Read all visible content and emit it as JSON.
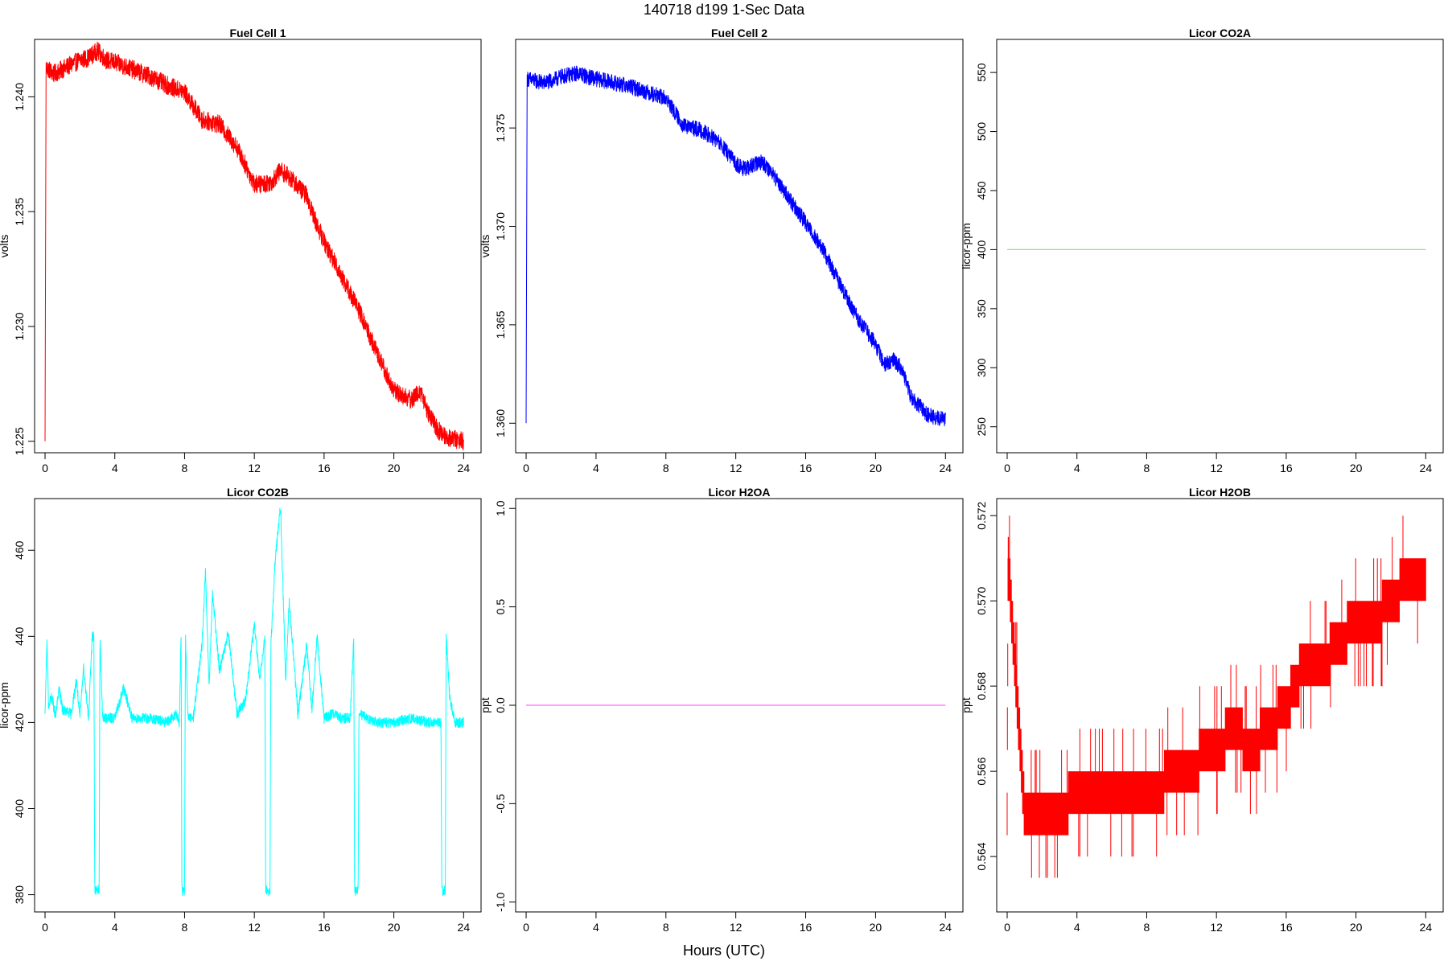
{
  "figure": {
    "title": "140718   d199   1-Sec Data",
    "xlabel": "Hours (UTC)"
  },
  "chart_data": [
    {
      "type": "line",
      "title": "Fuel Cell 1",
      "ylabel": "volts",
      "color": "#ff0000",
      "xlim": [
        -0.6,
        25.0
      ],
      "ylim": [
        1.2245,
        1.2425
      ],
      "xticks": [
        0,
        4,
        8,
        12,
        16,
        20,
        24
      ],
      "yticks": [
        1.225,
        1.23,
        1.235,
        1.24
      ],
      "ytick_labels": [
        "1.225",
        "1.230",
        "1.235",
        "1.240"
      ],
      "x": [
        0,
        0.05,
        0.5,
        1,
        1.5,
        2,
        2.5,
        3,
        3.5,
        4,
        5,
        6,
        7,
        8,
        8.5,
        9,
        10,
        11,
        12,
        12.5,
        13,
        13.5,
        14,
        15,
        15.5,
        16,
        17,
        18,
        19,
        20,
        21,
        21.5,
        22,
        22.5,
        23,
        24
      ],
      "y": [
        1.225,
        1.2413,
        1.241,
        1.2412,
        1.2414,
        1.2416,
        1.2417,
        1.242,
        1.2416,
        1.2415,
        1.2412,
        1.2409,
        1.2405,
        1.2402,
        1.2396,
        1.239,
        1.2388,
        1.2378,
        1.2362,
        1.2362,
        1.2363,
        1.2368,
        1.2365,
        1.2357,
        1.2346,
        1.2337,
        1.2322,
        1.2307,
        1.2289,
        1.2272,
        1.2268,
        1.2272,
        1.2262,
        1.2255,
        1.2252,
        1.225
      ],
      "noise": 0.0004
    },
    {
      "type": "line",
      "title": "Fuel Cell 2",
      "ylabel": "volts",
      "color": "#0000ff",
      "xlim": [
        -0.6,
        25.0
      ],
      "ylim": [
        1.3585,
        1.3795
      ],
      "xticks": [
        0,
        4,
        8,
        12,
        16,
        20,
        24
      ],
      "yticks": [
        1.36,
        1.365,
        1.37,
        1.375
      ],
      "ytick_labels": [
        "1.360",
        "1.365",
        "1.370",
        "1.375"
      ],
      "x": [
        0,
        0.05,
        0.5,
        1,
        1.5,
        2,
        3,
        3.5,
        4,
        5,
        6,
        7,
        8,
        8.5,
        9,
        10,
        11,
        12,
        12.5,
        13,
        13.5,
        14,
        15,
        15.5,
        16,
        17,
        18,
        19,
        20,
        20.5,
        21,
        21.5,
        22,
        23,
        24
      ],
      "y": [
        1.36,
        1.3775,
        1.3774,
        1.3773,
        1.3774,
        1.3776,
        1.3778,
        1.3776,
        1.3775,
        1.3773,
        1.3771,
        1.3768,
        1.3765,
        1.3758,
        1.3751,
        1.3749,
        1.3743,
        1.3732,
        1.3729,
        1.3731,
        1.3733,
        1.3728,
        1.3715,
        1.3708,
        1.3702,
        1.3688,
        1.367,
        1.3653,
        1.364,
        1.363,
        1.3632,
        1.3628,
        1.3614,
        1.3604,
        1.3602
      ],
      "noise": 0.0004
    },
    {
      "type": "line",
      "title": "Licor CO2A",
      "ylabel": "licor-ppm",
      "color": "#66ff66",
      "xlim": [
        -0.6,
        25.0
      ],
      "ylim": [
        228,
        578
      ],
      "xticks": [
        0,
        4,
        8,
        12,
        16,
        20,
        24
      ],
      "yticks": [
        250,
        300,
        350,
        400,
        450,
        500,
        550
      ],
      "ytick_labels": [
        "250",
        "300",
        "350",
        "400",
        "450",
        "500",
        "550"
      ],
      "x": [
        0,
        24
      ],
      "y": [
        400,
        400
      ],
      "noise": 0
    },
    {
      "type": "line",
      "title": "Licor CO2B",
      "ylabel": "licor-ppm",
      "color": "#00ffff",
      "xlim": [
        -0.6,
        25.0
      ],
      "ylim": [
        376,
        472
      ],
      "xticks": [
        0,
        4,
        8,
        12,
        16,
        20,
        24
      ],
      "yticks": [
        380,
        400,
        420,
        440,
        460
      ],
      "ytick_labels": [
        "380",
        "400",
        "420",
        "440",
        "460"
      ],
      "x": [
        0,
        0.1,
        0.2,
        0.4,
        0.6,
        0.8,
        1.0,
        1.5,
        1.8,
        2.0,
        2.2,
        2.5,
        2.7,
        2.8,
        2.85,
        3.1,
        3.15,
        3.3,
        4.0,
        4.5,
        5.0,
        6.0,
        7.0,
        7.5,
        7.7,
        7.8,
        7.85,
        8.0,
        8.05,
        8.2,
        8.5,
        9.0,
        9.2,
        9.4,
        9.6,
        10.0,
        10.5,
        11.0,
        11.5,
        12.0,
        12.3,
        12.6,
        12.65,
        12.9,
        12.95,
        13.2,
        13.5,
        13.8,
        14.0,
        14.5,
        15.0,
        15.3,
        15.6,
        16.0,
        16.5,
        17.0,
        17.5,
        17.7,
        17.75,
        17.95,
        18.0,
        18.5,
        19.0,
        20.0,
        21.0,
        22.0,
        22.7,
        22.75,
        22.95,
        23.0,
        23.2,
        23.5,
        24.0
      ],
      "y": [
        422,
        440,
        424,
        426,
        421,
        428,
        423,
        422,
        430,
        421,
        433,
        421,
        440,
        440,
        381,
        381,
        440,
        421,
        421,
        428,
        421,
        421,
        420,
        422,
        420,
        440,
        381,
        381,
        440,
        421,
        421,
        438,
        455,
        428,
        450,
        432,
        441,
        422,
        425,
        443,
        430,
        440,
        381,
        381,
        438,
        458,
        470,
        430,
        448,
        422,
        438,
        423,
        440,
        421,
        422,
        421,
        421,
        440,
        381,
        381,
        422,
        421,
        420,
        420,
        421,
        420,
        420,
        381,
        381,
        440,
        426,
        420,
        420
      ],
      "noise": 1.2
    },
    {
      "type": "line",
      "title": "Licor H2OA",
      "ylabel": "ppt",
      "color": "#ff66ff",
      "xlim": [
        -0.6,
        25.0
      ],
      "ylim": [
        -1.05,
        1.05
      ],
      "xticks": [
        0,
        4,
        8,
        12,
        16,
        20,
        24
      ],
      "yticks": [
        -1.0,
        -0.5,
        0.0,
        0.5,
        1.0
      ],
      "ytick_labels": [
        "-1.0",
        "-0.5",
        "0.0",
        "0.5",
        "1.0"
      ],
      "x": [
        0,
        24
      ],
      "y": [
        0,
        0
      ],
      "noise": 0
    },
    {
      "type": "line",
      "title": "Licor H2OB",
      "ylabel": "ppt",
      "color": "#ff0000",
      "xlim": [
        -0.6,
        25.0
      ],
      "ylim": [
        0.5627,
        0.5724
      ],
      "xticks": [
        0,
        4,
        8,
        12,
        16,
        20,
        24
      ],
      "yticks": [
        0.564,
        0.566,
        0.568,
        0.57,
        0.572
      ],
      "ytick_labels": [
        "0.564",
        "0.566",
        "0.568",
        "0.570",
        "0.572"
      ],
      "x": [
        0,
        0.05,
        1,
        2,
        3,
        4,
        6,
        8,
        10,
        12,
        13,
        14,
        15,
        16,
        17,
        18,
        19,
        20,
        21,
        22,
        23,
        24
      ],
      "y": [
        0.565,
        0.571,
        0.565,
        0.565,
        0.565,
        0.5655,
        0.5655,
        0.5655,
        0.566,
        0.5665,
        0.567,
        0.5665,
        0.567,
        0.5675,
        0.5685,
        0.5685,
        0.569,
        0.5695,
        0.5695,
        0.57,
        0.5705,
        0.5705
      ],
      "band": 0.001
    }
  ]
}
